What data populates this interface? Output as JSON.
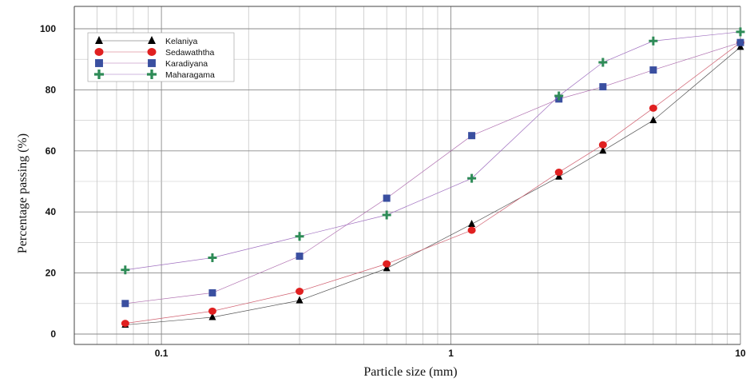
{
  "chart_data": {
    "type": "scatter",
    "xlabel": "Particle size (mm)",
    "ylabel": "Percentage passing (%)",
    "x_scale": "log",
    "xlim": [
      0.05,
      10
    ],
    "ylim": [
      0,
      100
    ],
    "x_ticks": [
      {
        "value": 0.1,
        "label": "0.1"
      },
      {
        "value": 1,
        "label": "1"
      },
      {
        "value": 10,
        "label": "10"
      }
    ],
    "y_ticks": [
      {
        "value": 0,
        "label": "0"
      },
      {
        "value": 20,
        "label": "20"
      },
      {
        "value": 40,
        "label": "40"
      },
      {
        "value": 60,
        "label": "60"
      },
      {
        "value": 80,
        "label": "80"
      },
      {
        "value": 100,
        "label": "100"
      }
    ],
    "grid": true,
    "legend_position": "top-left",
    "series": [
      {
        "name": "Kelaniya",
        "marker": "triangle",
        "color": "#000000",
        "line_color": "#555555",
        "x": [
          0.075,
          0.15,
          0.3,
          0.6,
          1.18,
          2.36,
          3.35,
          5,
          10
        ],
        "y": [
          3,
          5.5,
          11,
          21.5,
          36,
          51.5,
          60,
          70,
          94
        ]
      },
      {
        "name": "Sedawaththa",
        "marker": "circle",
        "color": "#e02020",
        "line_color": "#d06070",
        "x": [
          0.075,
          0.15,
          0.3,
          0.6,
          1.18,
          2.36,
          3.35,
          5,
          10
        ],
        "y": [
          3.5,
          7.5,
          14,
          23,
          34,
          53,
          62,
          74,
          95.5
        ]
      },
      {
        "name": "Karadiyana",
        "marker": "square",
        "color": "#3a4fa0",
        "line_color": "#b070b0",
        "x": [
          0.075,
          0.15,
          0.3,
          0.6,
          1.18,
          2.36,
          3.35,
          5,
          10
        ],
        "y": [
          10,
          13.5,
          25.5,
          44.5,
          65,
          77,
          81,
          86.5,
          95.5
        ]
      },
      {
        "name": "Maharagama",
        "marker": "plus",
        "color": "#2e8b57",
        "line_color": "#a070c0",
        "x": [
          0.075,
          0.15,
          0.3,
          0.6,
          1.18,
          2.36,
          3.35,
          5,
          10
        ],
        "y": [
          21,
          25,
          32,
          39,
          51,
          78,
          89,
          96,
          99
        ]
      }
    ]
  }
}
